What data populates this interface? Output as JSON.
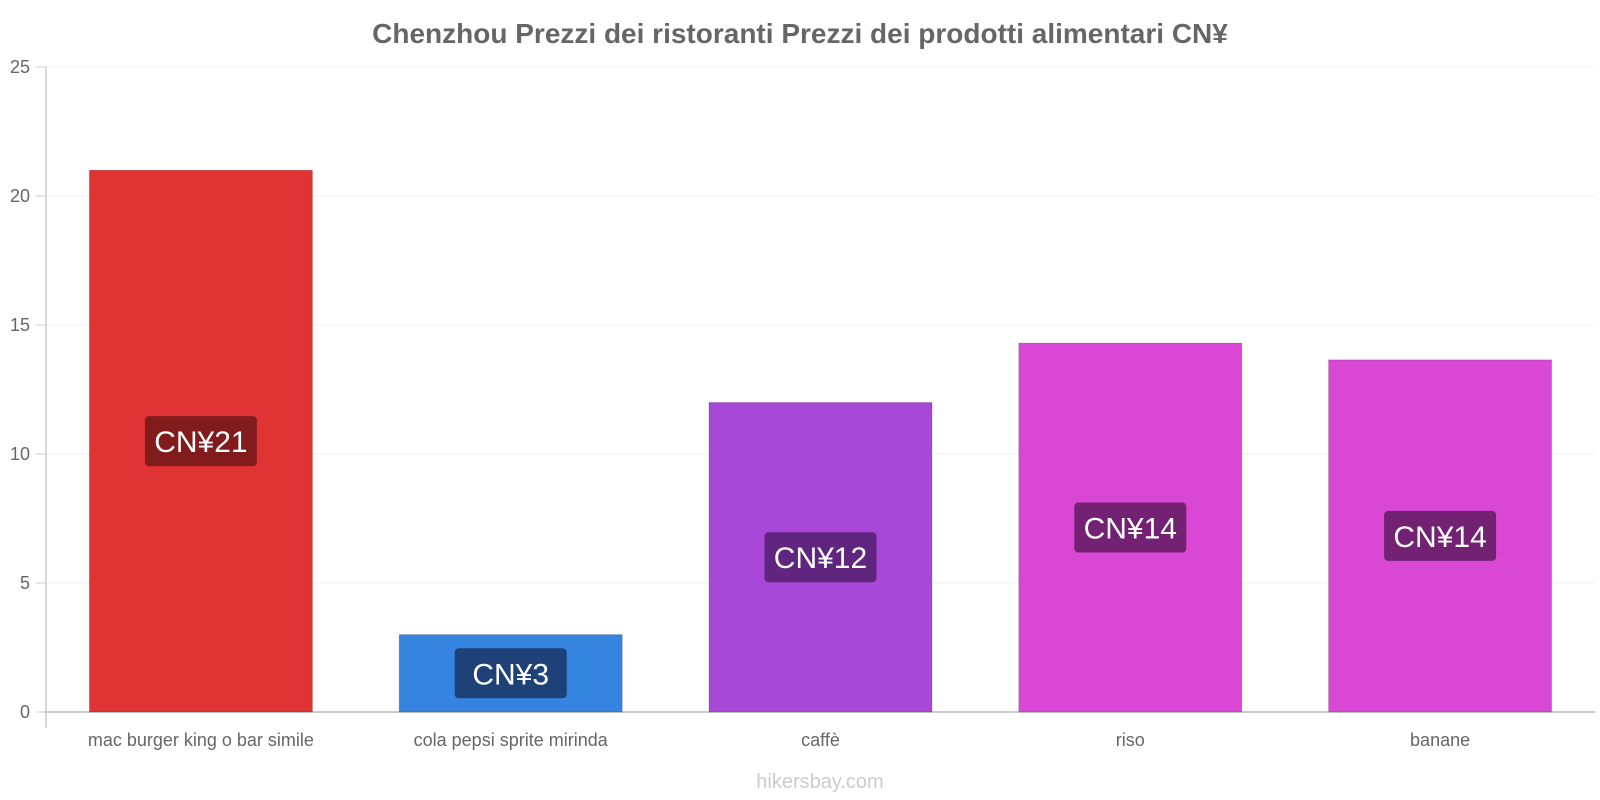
{
  "chart_data": {
    "type": "bar",
    "title": "Chenzhou Prezzi dei ristoranti Prezzi dei prodotti alimentari CN¥",
    "xlabel": "",
    "ylabel": "",
    "ylim": [
      0,
      25
    ],
    "yticks": [
      0,
      5,
      10,
      15,
      20,
      25
    ],
    "grid": true,
    "categories": [
      "mac burger king o bar simile",
      "cola pepsi sprite mirinda",
      "caffè",
      "riso",
      "banane"
    ],
    "values": [
      21,
      3,
      12,
      14.3,
      13.65
    ],
    "data_labels": [
      "CN¥21",
      "CN¥3",
      "CN¥12",
      "CN¥14",
      "CN¥14"
    ],
    "colors": [
      "#e03333",
      "#3584e0",
      "#a848d8",
      "#d848d4",
      "#d848d4"
    ],
    "label_bg_colors": [
      "#7a1a1a",
      "#1c3d6e",
      "#5a2377",
      "#6a1f6a",
      "#6a1f6a"
    ]
  },
  "footer": {
    "credit": "hikersbay.com"
  }
}
